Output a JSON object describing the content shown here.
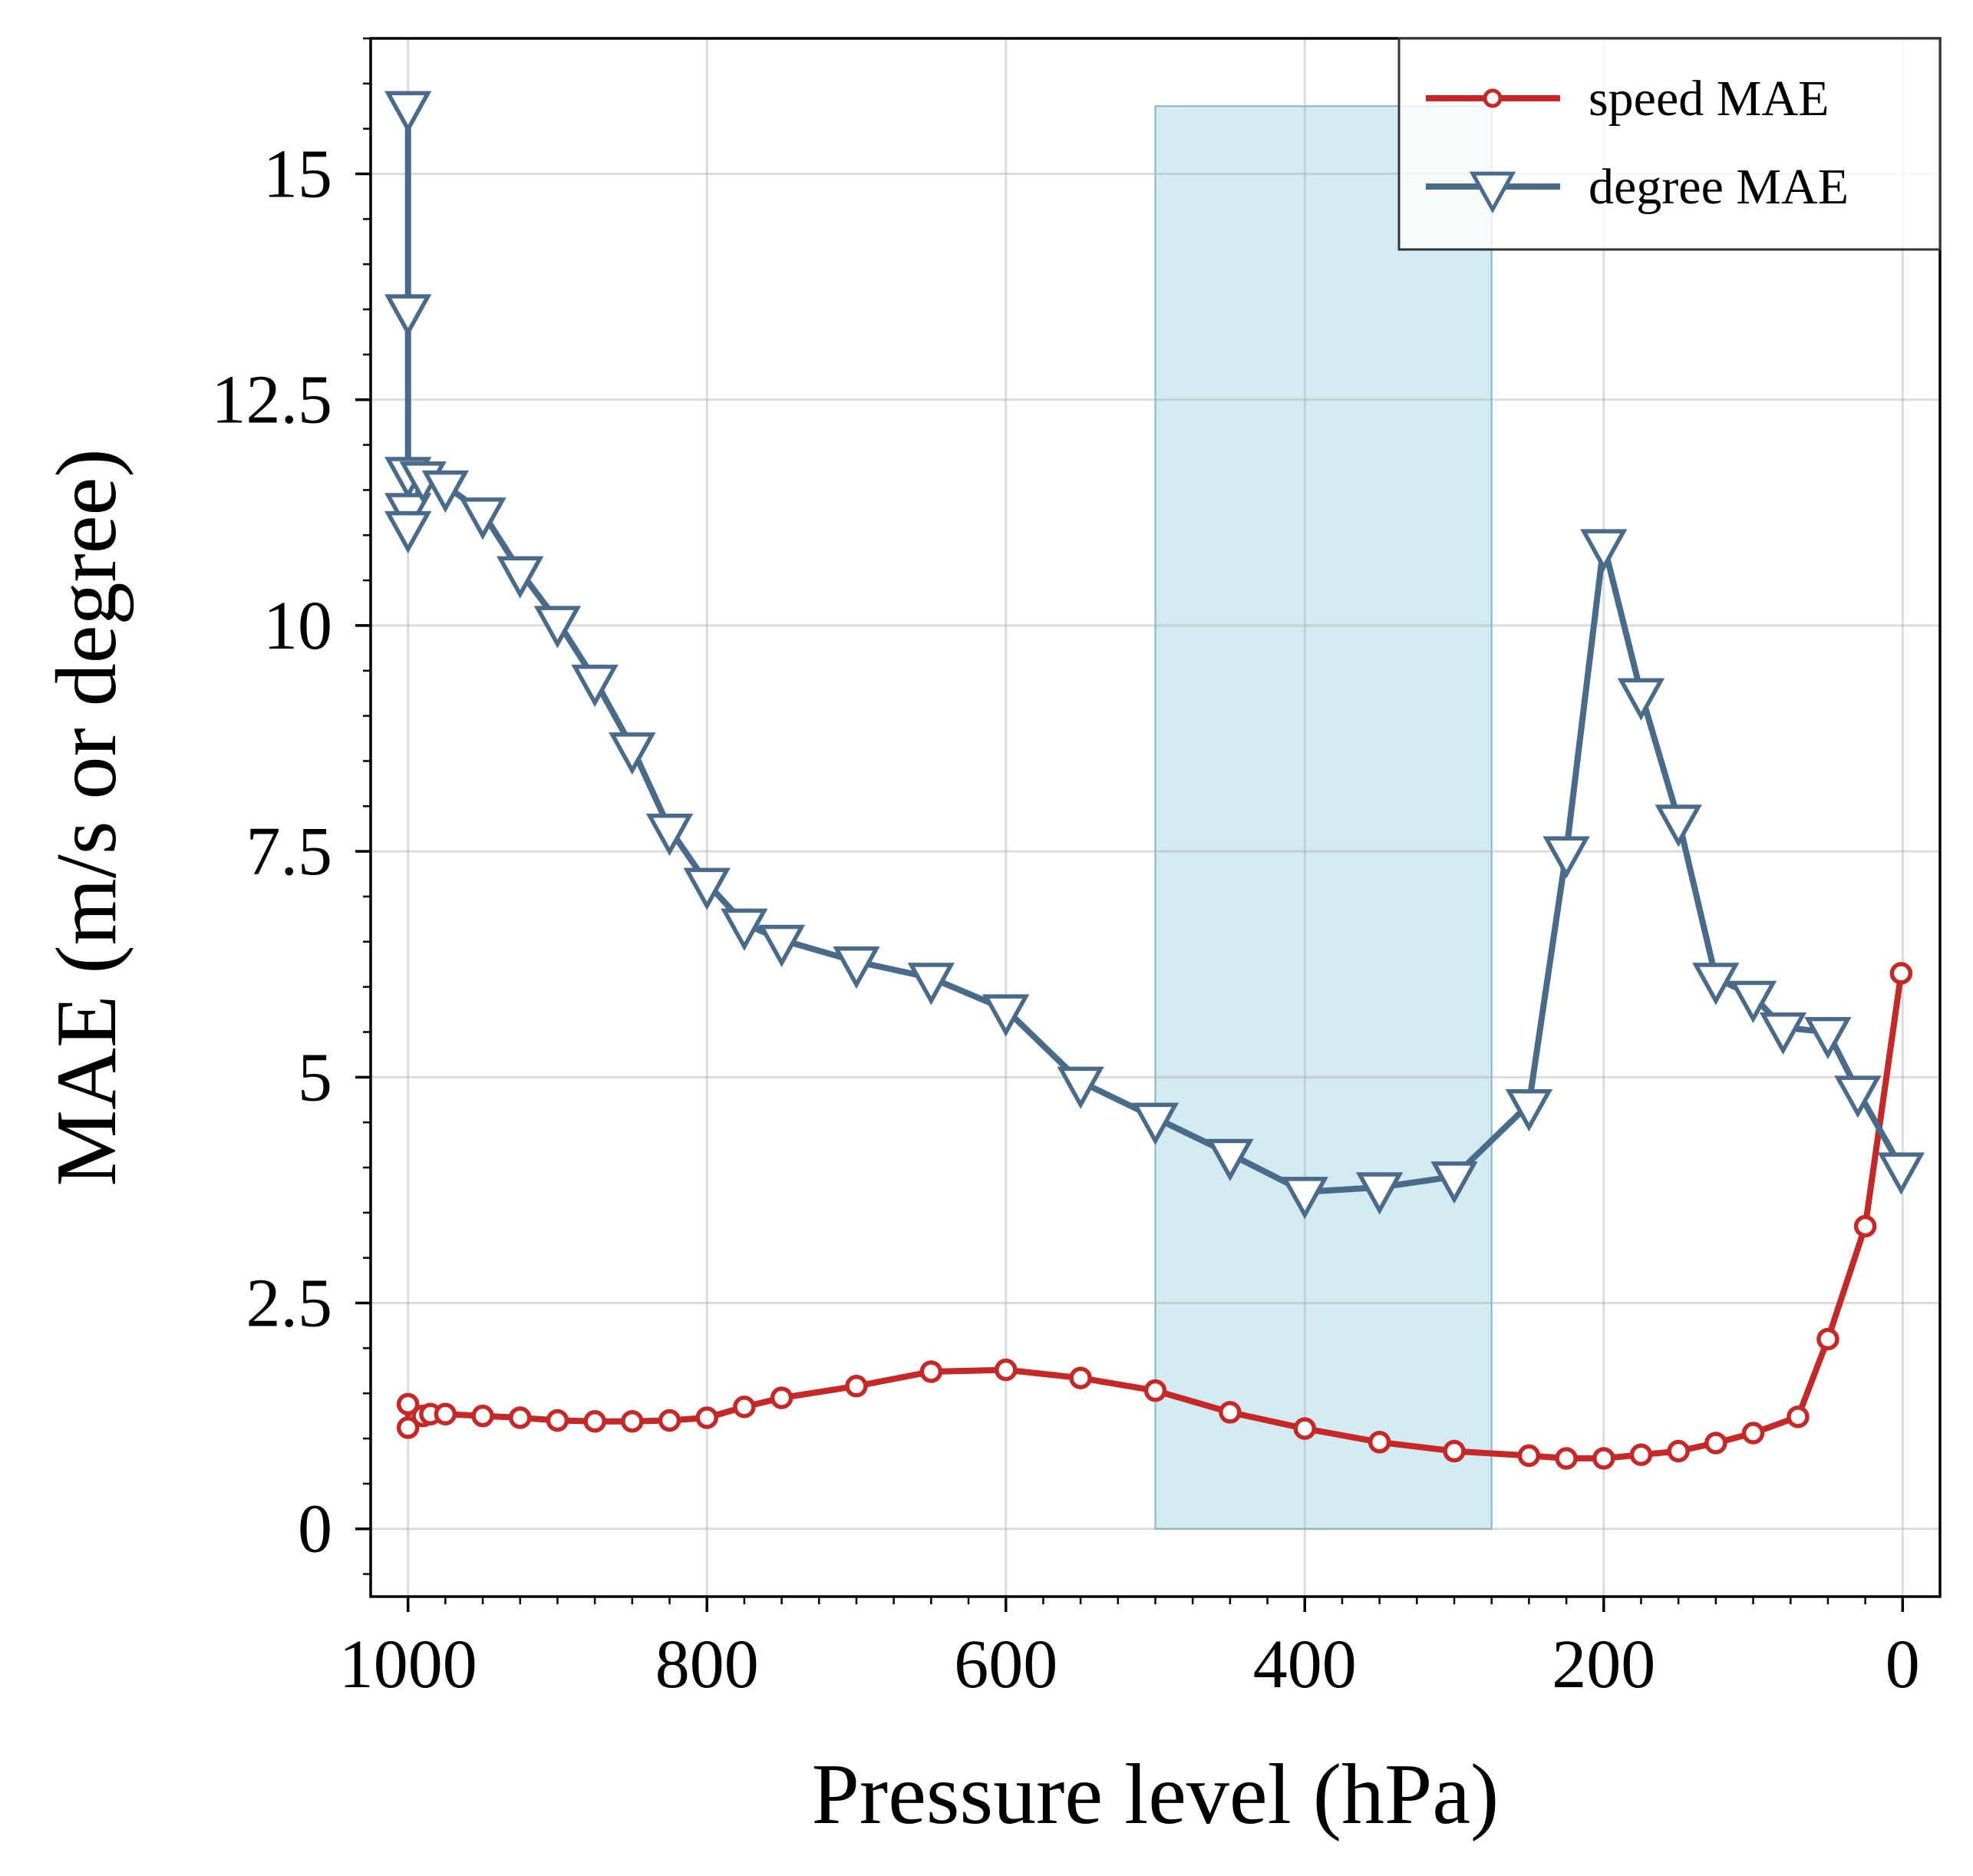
{
  "chart_data": {
    "type": "line",
    "xlabel": "Pressure level (hPa)",
    "ylabel": "MAE (m/s or degree)",
    "xlim": [
      1025,
      -25
    ],
    "ylim": [
      -0.75,
      16.5
    ],
    "x_ticks": [
      1000,
      800,
      600,
      400,
      200,
      0
    ],
    "x_tick_labels": [
      "1000",
      "800",
      "600",
      "400",
      "200",
      "0"
    ],
    "y_ticks": [
      0,
      2.5,
      5,
      7.5,
      10,
      12.5,
      15
    ],
    "y_tick_labels": [
      "0",
      "2.5",
      "5",
      "7.5",
      "10",
      "12.5",
      "15"
    ],
    "grid": true,
    "highlight_band": {
      "x_start": 500,
      "x_end": 275,
      "y_start": 0,
      "y_end": 15.75,
      "color": "#add8e6"
    },
    "legend": {
      "position": "top-right",
      "entries": [
        "speed MAE",
        "degree MAE"
      ]
    },
    "series": [
      {
        "name": "speed MAE",
        "color": "#c62828",
        "marker": "circle",
        "x": [
          1000,
          1000,
          990,
          985,
          975,
          950,
          925,
          900,
          875,
          850,
          825,
          800,
          775,
          750,
          700,
          650,
          600,
          550,
          500,
          450,
          400,
          350,
          300,
          250,
          225,
          200,
          175,
          150,
          125,
          100,
          70,
          50,
          25,
          1
        ],
        "y": [
          1.12,
          1.38,
          1.25,
          1.27,
          1.27,
          1.25,
          1.23,
          1.2,
          1.19,
          1.19,
          1.2,
          1.23,
          1.35,
          1.45,
          1.58,
          1.74,
          1.76,
          1.67,
          1.53,
          1.29,
          1.11,
          0.96,
          0.86,
          0.81,
          0.78,
          0.78,
          0.82,
          0.86,
          0.95,
          1.06,
          1.24,
          2.1,
          3.35,
          6.15
        ]
      },
      {
        "name": "degree MAE",
        "color": "#4a6a8a",
        "marker": "triangle-down",
        "x": [
          1000,
          1000,
          1000,
          1000,
          1000,
          990,
          975,
          950,
          925,
          900,
          875,
          850,
          825,
          800,
          775,
          750,
          700,
          650,
          600,
          550,
          500,
          450,
          400,
          350,
          300,
          250,
          225,
          200,
          175,
          150,
          125,
          100,
          80,
          50,
          30,
          1
        ],
        "y": [
          15.75,
          13.5,
          11.7,
          11.3,
          11.1,
          11.65,
          11.55,
          11.25,
          10.6,
          10.05,
          9.4,
          8.65,
          7.75,
          7.15,
          6.7,
          6.52,
          6.28,
          6.1,
          5.75,
          4.95,
          4.55,
          4.15,
          3.73,
          3.78,
          3.9,
          4.7,
          7.5,
          10.9,
          9.25,
          7.85,
          6.1,
          5.9,
          5.55,
          5.5,
          4.85,
          4.0
        ]
      }
    ]
  }
}
